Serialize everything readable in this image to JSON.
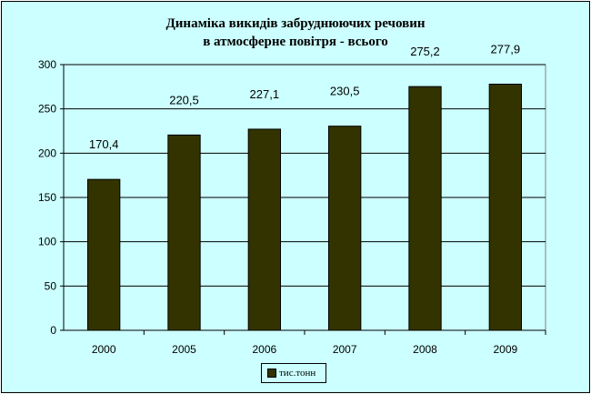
{
  "chart_data": {
    "type": "bar",
    "title_line1": "Динаміка викидів забруднюючих речовин",
    "title_line2": "в атмосферне повітря - всього",
    "categories": [
      "2000",
      "2005",
      "2006",
      "2007",
      "2008",
      "2009"
    ],
    "series": [
      {
        "name": "тис.тонн",
        "values": [
          170.4,
          220.5,
          227.1,
          230.5,
          275.2,
          277.9
        ]
      }
    ],
    "data_labels": [
      "170,4",
      "220,5",
      "227,1",
      "230,5",
      "275,2",
      "277,9"
    ],
    "y_ticks": [
      "0",
      "50",
      "100",
      "150",
      "200",
      "250",
      "300"
    ],
    "ylim": [
      0,
      300
    ],
    "grid": true,
    "legend_position": "bottom",
    "colors": {
      "background": "#ccffff",
      "bar": "#333300",
      "plot_area": "#ccffff"
    }
  }
}
